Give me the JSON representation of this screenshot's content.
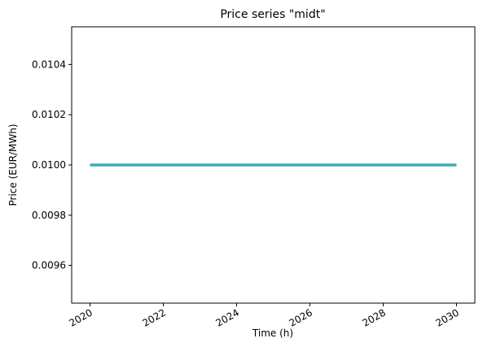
{
  "chart_data": {
    "type": "line",
    "title": "Price series \"midt\"",
    "x_label": "Time (h)",
    "y_label": "Price (EUR/MWh)",
    "x": [
      2020,
      2030
    ],
    "series": [
      {
        "color": "#41a8b6",
        "values": [
          0.01,
          0.01
        ]
      }
    ],
    "xlim": [
      2019.5,
      2030.5
    ],
    "xticks": [
      2020,
      2022,
      2024,
      2026,
      2028,
      2030
    ],
    "ylim": [
      0.00945,
      0.01055
    ],
    "yticks": [
      {
        "value": 0.0096,
        "label": "0.0096"
      },
      {
        "value": 0.0098,
        "label": "0.0098"
      },
      {
        "value": 0.01,
        "label": "0.0100"
      },
      {
        "value": 0.0102,
        "label": "0.0102"
      },
      {
        "value": 0.0104,
        "label": "0.0104"
      }
    ]
  }
}
